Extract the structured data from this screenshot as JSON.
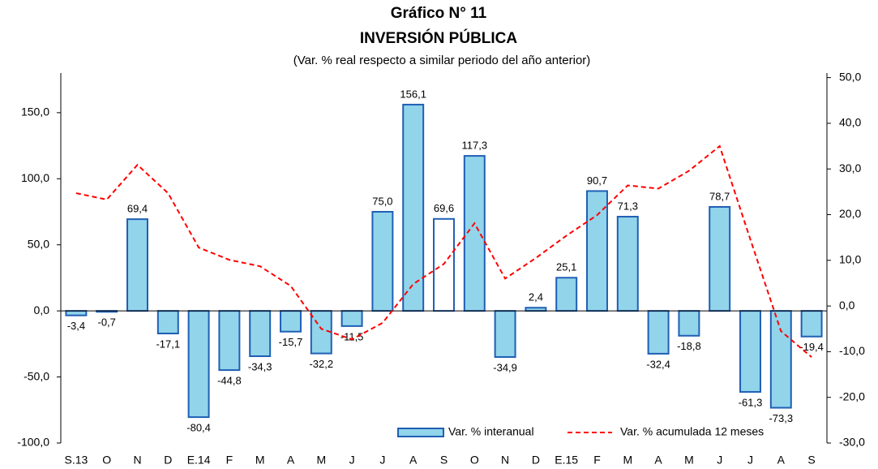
{
  "chart_data": {
    "type": "bar_line",
    "title": "Gráfico N° 11",
    "subtitle": "INVERSIÓN PÚBLICA",
    "note": "(Var. % real respecto a similar periodo del año anterior)",
    "categories": [
      "S.13",
      "O",
      "N",
      "D",
      "E.14",
      "F",
      "M",
      "A",
      "M",
      "J",
      "J",
      "A",
      "S",
      "O",
      "N",
      "D",
      "E.15",
      "F",
      "M",
      "A",
      "M",
      "J",
      "J",
      "A",
      "S"
    ],
    "series": [
      {
        "name": "Var. % interanual",
        "type": "bar",
        "color": "#92d4ea",
        "edge_color": "#1f5fb4",
        "colors": [
          "#92d4ea",
          "#92d4ea",
          "#92d4ea",
          "#92d4ea",
          "#92d4ea",
          "#92d4ea",
          "#92d4ea",
          "#92d4ea",
          "#92d4ea",
          "#92d4ea",
          "#92d4ea",
          "#92d4ea",
          "#ffffff",
          "#92d4ea",
          "#92d4ea",
          "#92d4ea",
          "#92d4ea",
          "#92d4ea",
          "#92d4ea",
          "#92d4ea",
          "#92d4ea",
          "#92d4ea",
          "#92d4ea",
          "#92d4ea",
          "#92d4ea"
        ],
        "values": [
          -3.4,
          -0.7,
          69.4,
          -17.1,
          -80.4,
          -44.8,
          -34.3,
          -15.7,
          -32.2,
          -11.5,
          75.0,
          156.1,
          69.6,
          117.3,
          -34.9,
          2.4,
          25.1,
          90.7,
          71.3,
          -32.4,
          -18.8,
          78.7,
          -61.3,
          -73.3,
          -19.4
        ],
        "value_labels": [
          "-3,4",
          "-0,7",
          "69,4",
          "-17,1",
          "-80,4",
          "-44,8",
          "-34,3",
          "-15,7",
          "-32,2",
          "-11,5",
          "75,0",
          "156,1",
          "69,6",
          "117,3",
          "-34,9",
          "2,4",
          "25,1",
          "90,7",
          "71,3",
          "-32,4",
          "-18,8",
          "78,7",
          "-61,3",
          "-73,3",
          "-19,4"
        ]
      },
      {
        "name": "Var. % acumulada 12 meses",
        "type": "line",
        "axis": "y2",
        "color": "#ff0000",
        "dashed": true,
        "values": [
          24.7,
          23.3,
          30.9,
          24.7,
          12.8,
          10.1,
          8.7,
          4.4,
          -5.0,
          -7.3,
          -3.7,
          4.8,
          9.2,
          18.1,
          6.0,
          10.5,
          15.4,
          19.9,
          26.4,
          25.7,
          29.6,
          35.0,
          14.6,
          -5.5,
          -11.2
        ]
      }
    ],
    "ylim": [
      -100,
      180
    ],
    "yticks": [
      {
        "value": -100,
        "label": "-100,0"
      },
      {
        "value": -50,
        "label": "-50,0"
      },
      {
        "value": 0,
        "label": "0,0"
      },
      {
        "value": 50,
        "label": "50,0"
      },
      {
        "value": 100,
        "label": "100,0"
      },
      {
        "value": 150,
        "label": "150,0"
      }
    ],
    "y2lim": [
      -30,
      51
    ],
    "y2ticks": [
      {
        "value": -30,
        "label": "-30,0"
      },
      {
        "value": -20,
        "label": "-20,0"
      },
      {
        "value": -10,
        "label": "-10,0"
      },
      {
        "value": 0,
        "label": "0,0"
      },
      {
        "value": 10,
        "label": "10,0"
      },
      {
        "value": 20,
        "label": "20,0"
      },
      {
        "value": 30,
        "label": "30,0"
      },
      {
        "value": 40,
        "label": "40,0"
      },
      {
        "value": 50,
        "label": "50,0"
      }
    ],
    "legend": "bottom-right"
  }
}
